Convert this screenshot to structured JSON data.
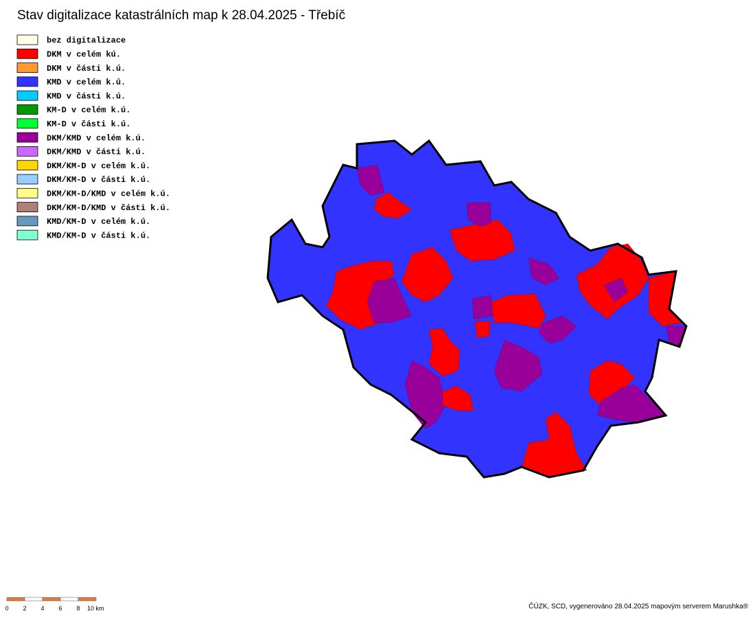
{
  "title": "Stav digitalizace katastrálních map k 28.04.2025 - Třebíč",
  "legend": [
    {
      "label": "bez digitalizace",
      "color": "#fffde8"
    },
    {
      "label": "DKM v celém kú.",
      "color": "#ff0000"
    },
    {
      "label": "DKM v části k.ú.",
      "color": "#ff9933"
    },
    {
      "label": "KMD v celém k.ú.",
      "color": "#3333ff"
    },
    {
      "label": "KMD v části k.ú.",
      "color": "#00ccff"
    },
    {
      "label": "KM-D v celém k.ú.",
      "color": "#009900"
    },
    {
      "label": "KM-D v části k.ú.",
      "color": "#00ff33"
    },
    {
      "label": "DKM/KMD v celém k.ú.",
      "color": "#990099"
    },
    {
      "label": "DKM/KMD v části k.ú.",
      "color": "#cc66ff"
    },
    {
      "label": "DKM/KM-D v celém k.ú.",
      "color": "#ffd700"
    },
    {
      "label": "DKM/KM-D v části k.ú.",
      "color": "#99ccff"
    },
    {
      "label": "DKM/KM-D/KMD v celém k.ú.",
      "color": "#ffff88"
    },
    {
      "label": "DKM/KM-D/KMD v části k.ú.",
      "color": "#b08078"
    },
    {
      "label": "KMD/KM-D v celém k.ú.",
      "color": "#6699bb"
    },
    {
      "label": "KMD/KM-D v části k.ú.",
      "color": "#80ffd0"
    }
  ],
  "scale_bar": {
    "labels": [
      "0",
      "2",
      "4",
      "6",
      "8",
      "10 km"
    ],
    "colors": [
      "#e07b3c",
      "#ffffff"
    ]
  },
  "footer": "ČÚZK, SCD, vygenerováno 28.04.2025 mapovým serverem Marushka®"
}
